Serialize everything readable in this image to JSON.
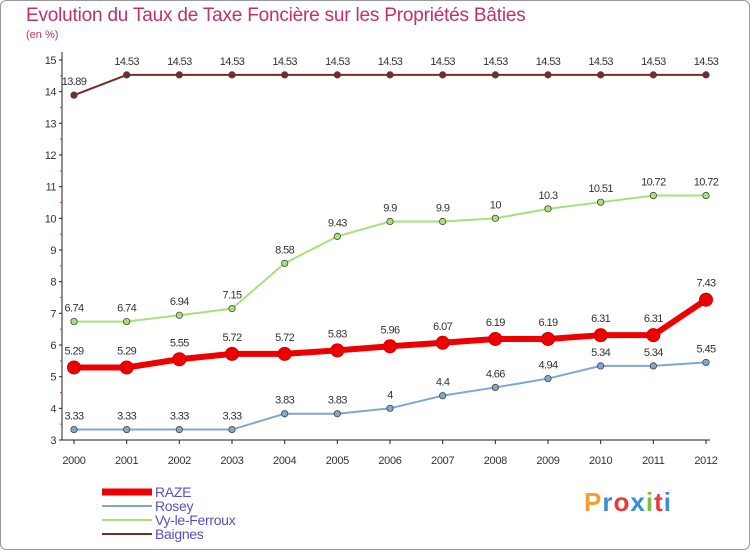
{
  "title": "Evolution du Taux de Taxe Foncière sur les Propriétés Bâties",
  "subtitle": "(en %)",
  "logo": "Proxiti",
  "chart_data": {
    "type": "line",
    "title": "Evolution du Taux de Taxe Foncière sur les Propriétés Bâties",
    "ylabel": "(en %)",
    "x": [
      "2000",
      "2001",
      "2002",
      "2003",
      "2004",
      "2005",
      "2006",
      "2007",
      "2008",
      "2009",
      "2010",
      "2011",
      "2012"
    ],
    "ylim": [
      3,
      15
    ],
    "yticks": [
      "3",
      "4",
      "5",
      "6",
      "7",
      "8",
      "9",
      "10",
      "11",
      "12",
      "13",
      "14",
      "15"
    ],
    "grid": false,
    "legend_position": "bottom-left",
    "series": [
      {
        "name": "RAZE",
        "color": "#ee0000",
        "values": [
          5.29,
          5.29,
          5.55,
          5.72,
          5.72,
          5.83,
          5.96,
          6.07,
          6.19,
          6.19,
          6.31,
          6.31,
          7.43
        ],
        "labels": [
          "5.29",
          "5.29",
          "5.55",
          "5.72",
          "5.72",
          "5.83",
          "5.96",
          "6.07",
          "6.19",
          "6.19",
          "6.31",
          "6.31",
          "7.43"
        ]
      },
      {
        "name": "Rosey",
        "color": "#7fa8cc",
        "values": [
          3.33,
          3.33,
          3.33,
          3.33,
          3.83,
          3.83,
          4,
          4.4,
          4.66,
          4.94,
          5.34,
          5.34,
          5.45
        ],
        "labels": [
          "3.33",
          "3.33",
          "3.33",
          "3.33",
          "3.83",
          "3.83",
          "4",
          "4.4",
          "4.66",
          "4.94",
          "5.34",
          "5.34",
          "5.45"
        ]
      },
      {
        "name": "Vy-le-Ferroux",
        "color": "#a8e07c",
        "values": [
          6.74,
          6.74,
          6.94,
          7.15,
          8.58,
          9.43,
          9.9,
          9.9,
          10,
          10.3,
          10.51,
          10.72,
          10.72
        ],
        "labels": [
          "6.74",
          "6.74",
          "6.94",
          "7.15",
          "8.58",
          "9.43",
          "9.9",
          "9.9",
          "10",
          "10.3",
          "10.51",
          "10.72",
          "10.72"
        ]
      },
      {
        "name": "Baignes",
        "color": "#7a2a2a",
        "values": [
          13.89,
          14.53,
          14.53,
          14.53,
          14.53,
          14.53,
          14.53,
          14.53,
          14.53,
          14.53,
          14.53,
          14.53,
          14.53
        ],
        "labels": [
          "13.89",
          "14.53",
          "14.53",
          "14.53",
          "14.53",
          "14.53",
          "14.53",
          "14.53",
          "14.53",
          "14.53",
          "14.53",
          "14.53",
          "14.53"
        ]
      }
    ]
  }
}
